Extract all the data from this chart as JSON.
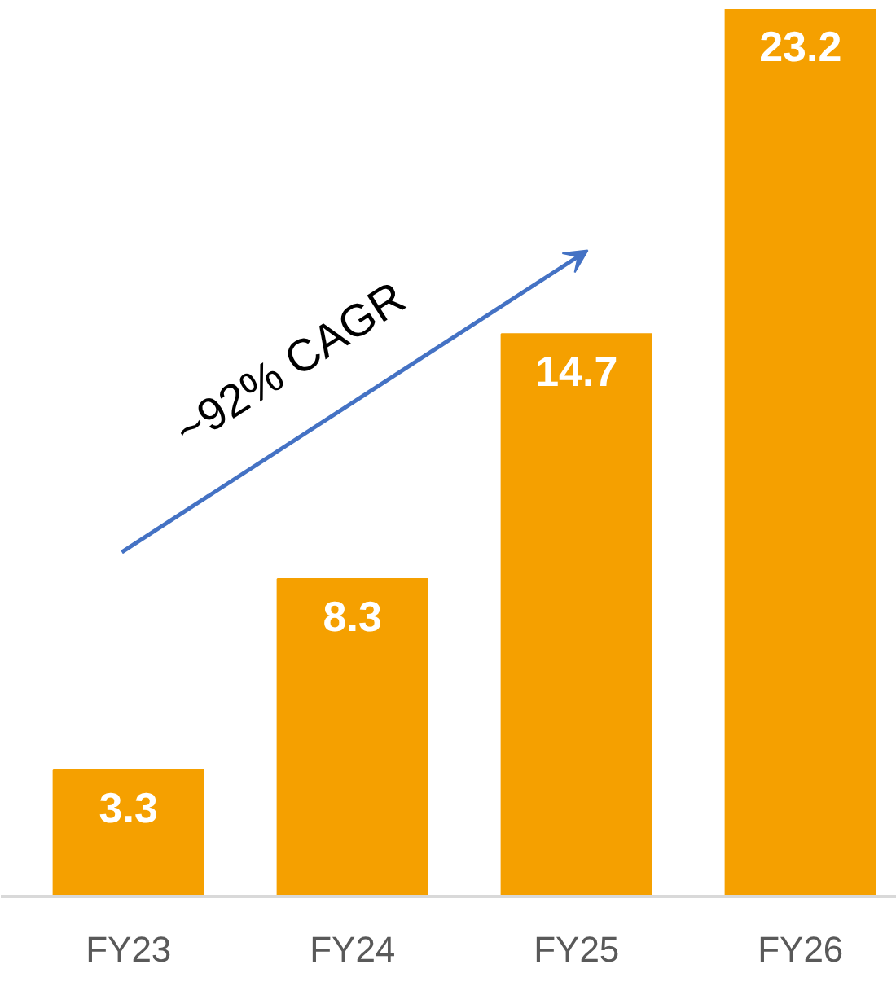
{
  "chart_data": {
    "type": "bar",
    "categories": [
      "FY23",
      "FY24",
      "FY25",
      "FY26"
    ],
    "values": [
      3.3,
      8.3,
      14.7,
      23.2
    ],
    "color": "#f5a000",
    "ylim": [
      0,
      23.2
    ],
    "data_labels": true,
    "tick_labels": "x",
    "grid": false,
    "annotations": [
      "~92% CAGR"
    ]
  }
}
